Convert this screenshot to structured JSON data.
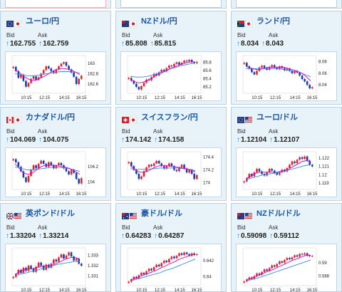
{
  "labels": {
    "bid": "Bid",
    "ask": "Ask"
  },
  "colors": {
    "up": "#e8202a",
    "down": "#1a3ea8",
    "ma_short": "#e000c8",
    "ma_long": "#3a8ae0",
    "title": "#1b55a6"
  },
  "cards": [
    {
      "name": "ユーロ/円",
      "flag1": "eu-flag-icon",
      "flag2": "jp-flag-icon",
      "bid": "162.755",
      "ask": "162.759",
      "xticks": [
        "10:15",
        "12:15",
        "14:15",
        "16:15"
      ],
      "yticks": [
        "163",
        "162.8",
        "162.6"
      ],
      "ymin": 162.45,
      "ymax": 163.12,
      "prices": [
        162.93,
        162.85,
        162.72,
        162.78,
        162.66,
        162.55,
        162.62,
        162.7,
        162.75,
        162.68,
        162.73,
        162.8,
        162.87,
        162.94,
        162.9,
        162.85,
        162.81,
        162.88,
        162.94,
        162.99,
        163.02,
        162.95,
        162.88,
        162.82,
        162.74,
        162.6,
        162.7,
        162.76
      ],
      "ma_s": [
        162.88,
        162.82,
        162.75,
        162.7,
        162.67,
        162.68,
        162.72,
        162.76,
        162.81,
        162.86,
        162.89,
        162.9,
        162.89,
        162.87,
        162.83,
        162.78
      ],
      "ma_l": [
        162.8,
        162.78,
        162.76,
        162.76,
        162.77,
        162.79,
        162.81,
        162.83,
        162.84,
        162.84,
        162.83,
        162.81
      ]
    },
    {
      "name": "NZドル/円",
      "flag1": "nz-flag-icon",
      "flag2": "jp-flag-icon",
      "bid": "85.808",
      "ask": "85.815",
      "xticks": [
        "10:15",
        "12:15",
        "14:15",
        "16:15"
      ],
      "yticks": [
        "85.8",
        "85.6",
        "85.4",
        "85.2"
      ],
      "ymin": 85.08,
      "ymax": 85.93,
      "prices": [
        85.42,
        85.35,
        85.28,
        85.2,
        85.14,
        85.22,
        85.3,
        85.38,
        85.36,
        85.44,
        85.52,
        85.48,
        85.56,
        85.62,
        85.58,
        85.66,
        85.72,
        85.7,
        85.76,
        85.8,
        85.74,
        85.79,
        85.84,
        85.82,
        85.86,
        85.8,
        85.78,
        85.81
      ],
      "ma_s": [
        85.38,
        85.33,
        85.3,
        85.32,
        85.37,
        85.42,
        85.48,
        85.53,
        85.58,
        85.63,
        85.68,
        85.72,
        85.76,
        85.79,
        85.81,
        85.81
      ],
      "ma_l": [
        85.46,
        85.44,
        85.44,
        85.46,
        85.5,
        85.55,
        85.6,
        85.65,
        85.69,
        85.73,
        85.76,
        85.78
      ]
    },
    {
      "name": "ランド/円",
      "flag1": "za-flag-icon",
      "flag2": "jp-flag-icon",
      "bid": "8.034",
      "ask": "8.043",
      "xticks": [
        "10:15",
        "12:15",
        "14:15",
        "16:15"
      ],
      "yticks": [
        "8.08",
        "8.06",
        "8.04"
      ],
      "ymin": 8.028,
      "ymax": 8.088,
      "prices": [
        8.078,
        8.072,
        8.068,
        8.062,
        8.058,
        8.064,
        8.07,
        8.073,
        8.069,
        8.066,
        8.071,
        8.074,
        8.07,
        8.067,
        8.072,
        8.069,
        8.065,
        8.068,
        8.064,
        8.06,
        8.064,
        8.061,
        8.056,
        8.05,
        8.046,
        8.04,
        8.034,
        8.036
      ],
      "ma_s": [
        8.072,
        8.069,
        8.067,
        8.066,
        8.068,
        8.07,
        8.07,
        8.07,
        8.07,
        8.07,
        8.068,
        8.066,
        8.063,
        8.06,
        8.054,
        8.047
      ],
      "ma_l": [
        8.068,
        8.068,
        8.068,
        8.068,
        8.068,
        8.068,
        8.067,
        8.066,
        8.064,
        8.062,
        8.058,
        8.054
      ]
    },
    {
      "name": "カナダドル/円",
      "flag1": "ca-flag-icon",
      "flag2": "jp-flag-icon",
      "bid": "104.069",
      "ask": "104.075",
      "xticks": [
        "10:15",
        "12:15",
        "14:15",
        "16:15"
      ],
      "yticks": [
        "104.2",
        "104"
      ],
      "ymin": 103.92,
      "ymax": 104.38,
      "prices": [
        104.3,
        104.26,
        104.2,
        104.14,
        104.06,
        104.0,
        104.08,
        104.16,
        104.22,
        104.18,
        104.24,
        104.28,
        104.24,
        104.2,
        104.26,
        104.22,
        104.18,
        104.22,
        104.25,
        104.22,
        104.18,
        104.14,
        104.1,
        104.16,
        104.12,
        104.04,
        103.98,
        104.05
      ],
      "ma_s": [
        104.24,
        104.18,
        104.12,
        104.1,
        104.12,
        104.16,
        104.2,
        104.22,
        104.22,
        104.22,
        104.21,
        104.2,
        104.19,
        104.17,
        104.14,
        104.1
      ],
      "ma_l": [
        104.2,
        104.18,
        104.16,
        104.16,
        104.17,
        104.18,
        104.19,
        104.19,
        104.19,
        104.18,
        104.16,
        104.14
      ]
    },
    {
      "name": "スイスフラン/円",
      "flag1": "ch-flag-icon",
      "flag2": "jp-flag-icon",
      "bid": "174.142",
      "ask": "174.158",
      "xticks": [
        "10:15",
        "12:15",
        "14:15",
        "16:15"
      ],
      "yticks": [
        "174.4",
        "174.2",
        "174"
      ],
      "ymin": 173.92,
      "ymax": 174.46,
      "prices": [
        174.32,
        174.26,
        174.2,
        174.14,
        174.06,
        174.1,
        174.18,
        174.24,
        174.28,
        174.26,
        174.3,
        174.34,
        174.3,
        174.26,
        174.22,
        174.26,
        174.3,
        174.26,
        174.2,
        174.18,
        174.24,
        174.28,
        174.22,
        174.16,
        174.2,
        174.14,
        174.06,
        174.12
      ],
      "ma_s": [
        174.26,
        174.21,
        174.17,
        174.16,
        174.18,
        174.22,
        174.25,
        174.27,
        174.27,
        174.26,
        174.25,
        174.24,
        174.23,
        174.22,
        174.2,
        174.17
      ],
      "ma_l": [
        174.22,
        174.21,
        174.21,
        174.21,
        174.22,
        174.23,
        174.23,
        174.23,
        174.23,
        174.22,
        174.21,
        174.19
      ]
    },
    {
      "name": "ユーロ/ドル",
      "flag1": "eu-flag-icon",
      "flag2": "us-flag-icon",
      "bid": "1.12104",
      "ask": "1.12107",
      "xticks": [
        "10:15",
        "12:15",
        "14:15",
        "16:15"
      ],
      "yticks": [
        "1.122",
        "1.121",
        "1.12",
        "1.119"
      ],
      "ymin": 1.1184,
      "ymax": 1.1226,
      "prices": [
        1.1192,
        1.1196,
        1.1201,
        1.1198,
        1.1203,
        1.1207,
        1.1204,
        1.1201,
        1.1199,
        1.1203,
        1.1207,
        1.1205,
        1.1202,
        1.12,
        1.1203,
        1.1206,
        1.1204,
        1.1208,
        1.1212,
        1.1216,
        1.1214,
        1.1218,
        1.1221,
        1.1219,
        1.1222,
        1.1217,
        1.1212,
        1.121
      ],
      "ma_s": [
        1.1195,
        1.1198,
        1.1201,
        1.1203,
        1.1203,
        1.1203,
        1.1203,
        1.1203,
        1.1204,
        1.1205,
        1.1207,
        1.121,
        1.1213,
        1.1216,
        1.1217,
        1.1216
      ],
      "ma_l": [
        1.1194,
        1.1196,
        1.1198,
        1.12,
        1.1201,
        1.1202,
        1.1203,
        1.1205,
        1.1207,
        1.1209,
        1.1211,
        1.1212
      ]
    },
    {
      "name": "英ポンド/ドル",
      "flag1": "gb-flag-icon",
      "flag2": "us-flag-icon",
      "bid": "1.33204",
      "ask": "1.33214",
      "xticks": [
        "10:15",
        "12:15",
        "14:15",
        "16:15"
      ],
      "yticks": [
        "1.333",
        "1.332",
        "1.331"
      ],
      "ymin": 1.3302,
      "ymax": 1.3336,
      "prices": [
        1.3309,
        1.3312,
        1.3316,
        1.3313,
        1.3318,
        1.3315,
        1.332,
        1.3317,
        1.3314,
        1.3319,
        1.3323,
        1.332,
        1.3316,
        1.3321,
        1.3318,
        1.3322,
        1.3326,
        1.3324,
        1.3328,
        1.3331,
        1.3327,
        1.333,
        1.3333,
        1.3329,
        1.3325,
        1.3327,
        1.3322,
        1.332
      ],
      "ma_s": [
        1.3311,
        1.3314,
        1.3316,
        1.3317,
        1.3317,
        1.3318,
        1.3319,
        1.332,
        1.332,
        1.3321,
        1.3323,
        1.3325,
        1.3327,
        1.3328,
        1.3328,
        1.3326
      ],
      "ma_l": [
        1.331,
        1.3312,
        1.3313,
        1.3315,
        1.3316,
        1.3318,
        1.3319,
        1.3321,
        1.3322,
        1.3323,
        1.3324,
        1.3324
      ]
    },
    {
      "name": "豪ドル/ドル",
      "flag1": "au-flag-icon",
      "flag2": "us-flag-icon",
      "bid": "0.64283",
      "ask": "0.64287",
      "xticks": [
        "10:15",
        "12:15",
        "14:15",
        "16:15"
      ],
      "yticks": [
        "0.642",
        "0.64"
      ],
      "ymin": 0.6391,
      "ymax": 0.6434,
      "prices": [
        0.6394,
        0.6397,
        0.64,
        0.6398,
        0.6402,
        0.6405,
        0.6403,
        0.6407,
        0.641,
        0.6408,
        0.6412,
        0.6415,
        0.6413,
        0.6417,
        0.642,
        0.6418,
        0.6422,
        0.6425,
        0.6423,
        0.6426,
        0.6429,
        0.6427,
        0.643,
        0.6428,
        0.6426,
        0.6429,
        0.6427,
        0.6428
      ],
      "ma_s": [
        0.6396,
        0.6398,
        0.64,
        0.6402,
        0.6404,
        0.6406,
        0.6408,
        0.6411,
        0.6413,
        0.6416,
        0.6418,
        0.6421,
        0.6423,
        0.6425,
        0.6427,
        0.6428
      ],
      "ma_l": [
        0.6395,
        0.6397,
        0.6399,
        0.6401,
        0.6403,
        0.6405,
        0.6408,
        0.641,
        0.6413,
        0.6416,
        0.6419,
        0.6422
      ]
    },
    {
      "name": "NZドル/ドル",
      "flag1": "nz-flag-icon",
      "flag2": "us-flag-icon",
      "bid": "0.59098",
      "ask": "0.59112",
      "xticks": [
        "10:15",
        "12:15",
        "14:15",
        "16:15"
      ],
      "yticks": [
        "0.59",
        "0.588"
      ],
      "ymin": 0.5868,
      "ymax": 0.592,
      "prices": [
        0.5872,
        0.5875,
        0.5878,
        0.5876,
        0.588,
        0.5884,
        0.5882,
        0.5886,
        0.589,
        0.5888,
        0.5892,
        0.5896,
        0.5894,
        0.5898,
        0.5902,
        0.59,
        0.5904,
        0.5907,
        0.5905,
        0.5908,
        0.5911,
        0.5909,
        0.5913,
        0.5912,
        0.5914,
        0.5911,
        0.591,
        0.591
      ],
      "ma_s": [
        0.5874,
        0.5876,
        0.5879,
        0.5881,
        0.5884,
        0.5887,
        0.5889,
        0.5892,
        0.5895,
        0.5898,
        0.5901,
        0.5904,
        0.5906,
        0.5909,
        0.5911,
        0.5911
      ],
      "ma_l": [
        0.5873,
        0.5875,
        0.5877,
        0.588,
        0.5883,
        0.5886,
        0.5889,
        0.5892,
        0.5895,
        0.5898,
        0.5901,
        0.5904
      ]
    }
  ],
  "chart_data": [
    {
      "type": "line",
      "title": "ユーロ/円",
      "x": [
        "10:15",
        "12:15",
        "14:15",
        "16:15"
      ],
      "y_ticks": [
        163,
        162.8,
        162.6
      ]
    },
    {
      "type": "line",
      "title": "NZドル/円",
      "x": [
        "10:15",
        "12:15",
        "14:15",
        "16:15"
      ],
      "y_ticks": [
        85.8,
        85.6,
        85.4,
        85.2
      ]
    },
    {
      "type": "line",
      "title": "ランド/円",
      "x": [
        "10:15",
        "12:15",
        "14:15",
        "16:15"
      ],
      "y_ticks": [
        8.08,
        8.06,
        8.04
      ]
    },
    {
      "type": "line",
      "title": "カナダドル/円",
      "x": [
        "10:15",
        "12:15",
        "14:15",
        "16:15"
      ],
      "y_ticks": [
        104.2,
        104
      ]
    },
    {
      "type": "line",
      "title": "スイスフラン/円",
      "x": [
        "10:15",
        "12:15",
        "14:15",
        "16:15"
      ],
      "y_ticks": [
        174.4,
        174.2,
        174
      ]
    },
    {
      "type": "line",
      "title": "ユーロ/ドル",
      "x": [
        "10:15",
        "12:15",
        "14:15",
        "16:15"
      ],
      "y_ticks": [
        1.122,
        1.121,
        1.12,
        1.119
      ]
    },
    {
      "type": "line",
      "title": "英ポンド/ドル",
      "x": [
        "10:15",
        "12:15",
        "14:15",
        "16:15"
      ],
      "y_ticks": [
        1.333,
        1.332,
        1.331
      ]
    },
    {
      "type": "line",
      "title": "豪ドル/ドル",
      "x": [
        "10:15",
        "12:15",
        "14:15",
        "16:15"
      ],
      "y_ticks": [
        0.642,
        0.64
      ]
    },
    {
      "type": "line",
      "title": "NZドル/ドル",
      "x": [
        "10:15",
        "12:15",
        "14:15",
        "16:15"
      ],
      "y_ticks": [
        0.59,
        0.588
      ]
    }
  ]
}
